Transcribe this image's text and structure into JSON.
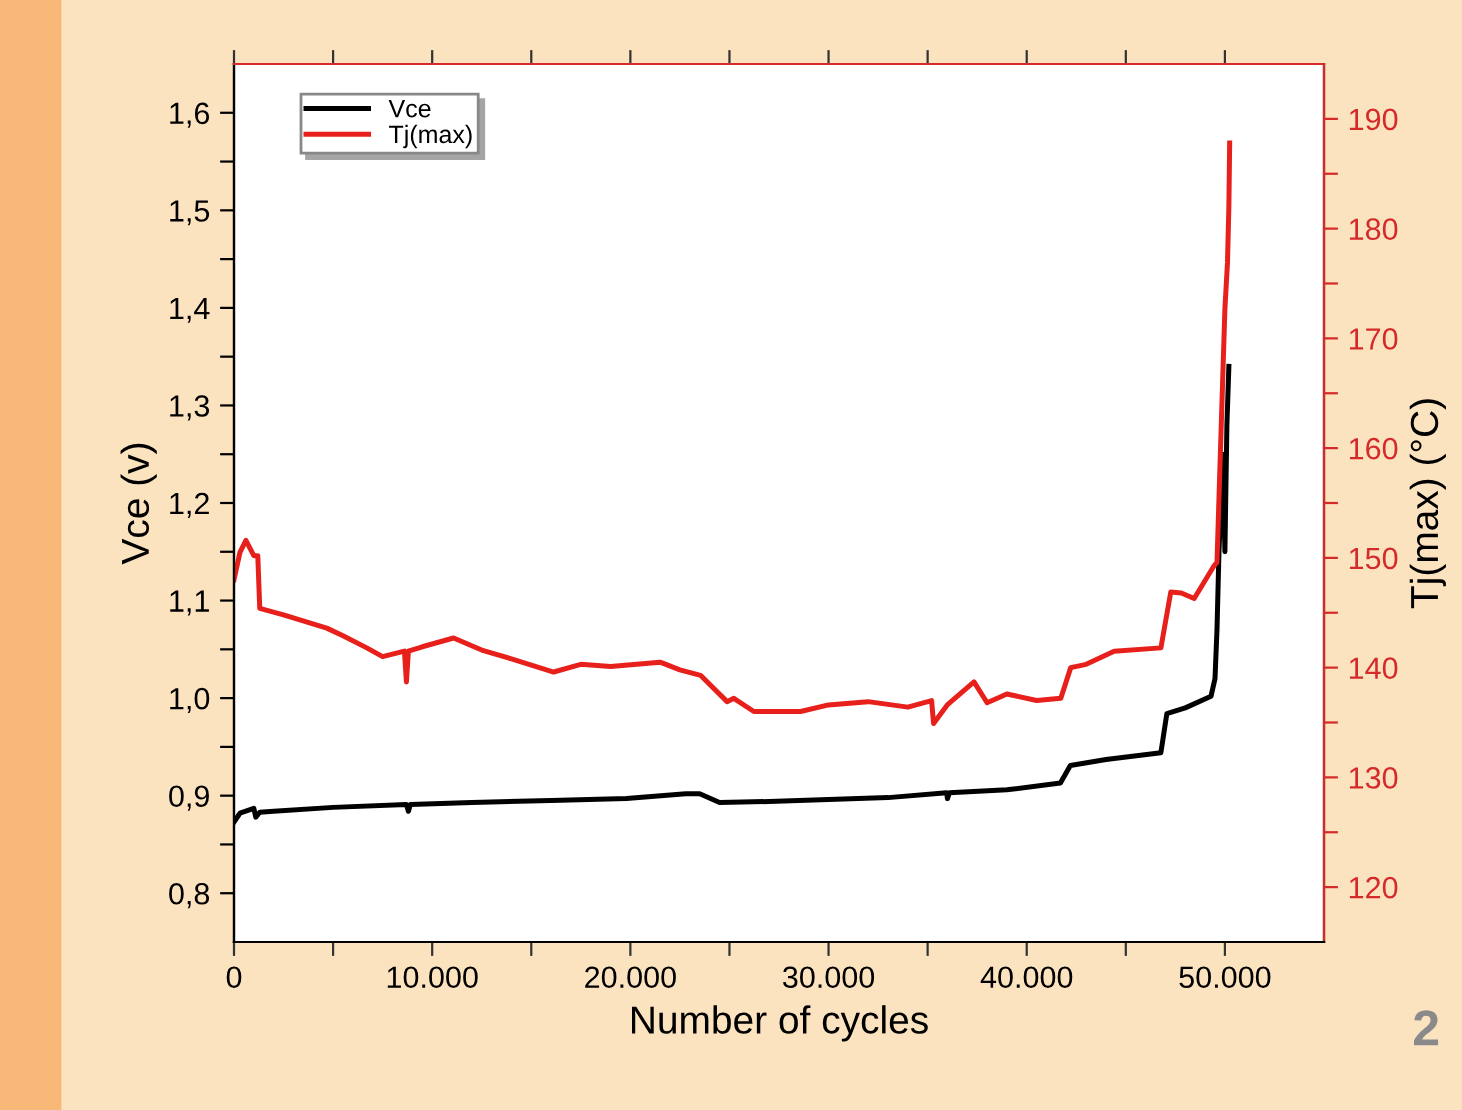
{
  "chart_data": {
    "type": "line",
    "xlabel": "Number of cycles",
    "ylabel": "Vce (v)",
    "y2label": "Tj(max) (°C)",
    "xlim": [
      0,
      55000
    ],
    "xticks": [
      {
        "value": 0,
        "label": "0"
      },
      {
        "value": 5000,
        "label": null
      },
      {
        "value": 10000,
        "label": "10.000"
      },
      {
        "value": 15000,
        "label": null
      },
      {
        "value": 20000,
        "label": "20.000"
      },
      {
        "value": 25000,
        "label": null
      },
      {
        "value": 30000,
        "label": "30.000"
      },
      {
        "value": 35000,
        "label": null
      },
      {
        "value": 40000,
        "label": "40.000"
      },
      {
        "value": 45000,
        "label": null
      },
      {
        "value": 50000,
        "label": "50.000"
      }
    ],
    "ylim": [
      0.75,
      1.65
    ],
    "yticks": [
      {
        "value": 0.8,
        "label": "0,8"
      },
      {
        "value": 0.85,
        "label": null
      },
      {
        "value": 0.9,
        "label": "0,9"
      },
      {
        "value": 0.95,
        "label": null
      },
      {
        "value": 1.0,
        "label": "1,0"
      },
      {
        "value": 1.05,
        "label": null
      },
      {
        "value": 1.1,
        "label": "1,1"
      },
      {
        "value": 1.15,
        "label": null
      },
      {
        "value": 1.2,
        "label": "1,2"
      },
      {
        "value": 1.25,
        "label": null
      },
      {
        "value": 1.3,
        "label": "1,3"
      },
      {
        "value": 1.35,
        "label": null
      },
      {
        "value": 1.4,
        "label": "1,4"
      },
      {
        "value": 1.45,
        "label": null
      },
      {
        "value": 1.5,
        "label": "1,5"
      },
      {
        "value": 1.55,
        "label": null
      },
      {
        "value": 1.6,
        "label": "1,6"
      }
    ],
    "y2lim": [
      115,
      195
    ],
    "y2ticks": [
      120,
      {
        "value": 125,
        "label": null
      },
      130,
      {
        "value": 135,
        "label": null
      },
      140,
      {
        "value": 145,
        "label": null
      },
      150,
      {
        "value": 155,
        "label": null
      },
      160,
      {
        "value": 165,
        "label": null
      },
      170,
      {
        "value": 175,
        "label": null
      },
      180,
      {
        "value": 185,
        "label": null
      },
      190
    ],
    "legend": "top left",
    "grid": false,
    "marker": "none",
    "line_style": "solid",
    "annotations": [
      "2"
    ],
    "series": [
      {
        "name": "Vce",
        "color": "#000000",
        "x": [
          0,
          300,
          1000,
          1100,
          1300,
          2000,
          5000,
          8700,
          8800,
          8900,
          12000,
          16000,
          19800,
          22800,
          23500,
          24500,
          27000,
          30000,
          33000,
          35960,
          36000,
          36100,
          39000,
          41700,
          42200,
          44000,
          46770,
          47070,
          48000,
          49300,
          49500,
          49600,
          49700,
          49800,
          49900,
          50000,
          50100,
          50200
        ],
        "values": [
          0.873,
          0.882,
          0.887,
          0.878,
          0.883,
          0.884,
          0.888,
          0.891,
          0.884,
          0.891,
          0.893,
          0.895,
          0.897,
          0.902,
          0.902,
          0.893,
          0.894,
          0.896,
          0.898,
          0.903,
          0.897,
          0.903,
          0.906,
          0.913,
          0.931,
          0.937,
          0.944,
          0.984,
          0.99,
          1.002,
          1.02,
          1.07,
          1.15,
          1.2,
          1.25,
          1.15,
          1.28,
          1.34
        ]
      },
      {
        "name": "Tj(max)",
        "color": "#e8201c",
        "axis": "y2",
        "x": [
          0,
          300,
          600,
          1000,
          1200,
          1300,
          2500,
          4680,
          5500,
          6700,
          7500,
          8600,
          8700,
          8800,
          9500,
          11080,
          12500,
          14000,
          16130,
          17500,
          19000,
          21500,
          22500,
          23540,
          24880,
          25220,
          26230,
          28590,
          30000,
          32000,
          34000,
          35200,
          35300,
          35990,
          37340,
          38000,
          39000,
          40500,
          41720,
          42220,
          43000,
          44410,
          46770,
          47270,
          47800,
          48450,
          49460,
          49600,
          49800,
          50000,
          50130,
          50200,
          50240
        ],
        "values": [
          148.0,
          150.5,
          151.6,
          150.2,
          150.2,
          145.4,
          144.8,
          143.6,
          142.9,
          141.8,
          141.0,
          141.5,
          138.7,
          141.5,
          141.9,
          142.7,
          141.6,
          140.8,
          139.6,
          140.3,
          140.1,
          140.5,
          139.8,
          139.3,
          136.9,
          137.2,
          136.0,
          136.0,
          136.6,
          136.9,
          136.4,
          137.0,
          134.9,
          136.6,
          138.7,
          136.8,
          137.6,
          137.0,
          137.2,
          140.0,
          140.3,
          141.5,
          141.8,
          146.9,
          146.8,
          146.3,
          149.3,
          149.6,
          161.2,
          172.7,
          176.9,
          182.0,
          187.8
        ]
      }
    ]
  }
}
